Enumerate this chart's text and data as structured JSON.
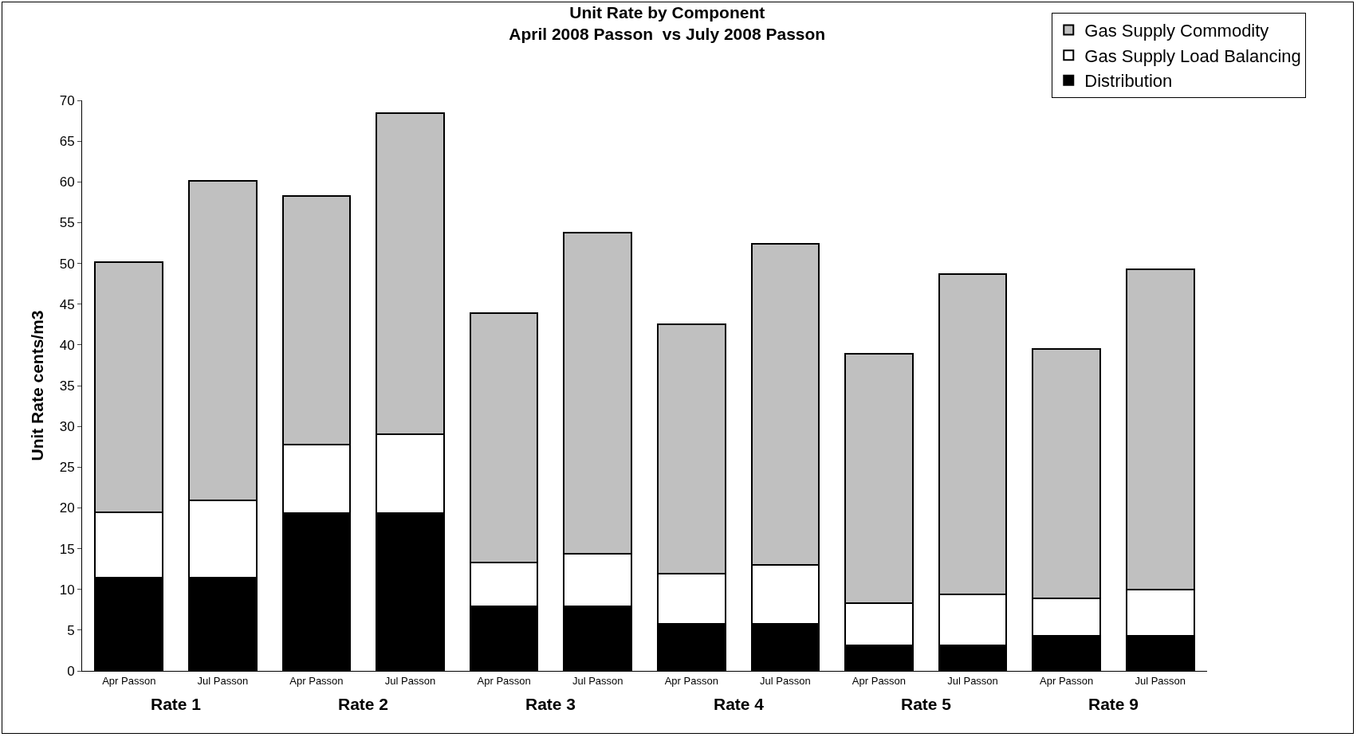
{
  "chart_data": {
    "type": "bar",
    "title": "Unit Rate by Component\nApril 2008 Passon  vs July 2008 Passon",
    "ylabel": "Unit Rate cents/m3",
    "categories": [
      "Apr Passon",
      "Jul Passon",
      "Apr Passon",
      "Jul Passon",
      "Apr Passon",
      "Jul Passon",
      "Apr Passon",
      "Jul Passon",
      "Apr Passon",
      "Jul Passon",
      "Apr Passon",
      "Jul Passon"
    ],
    "stacked": true,
    "series": [
      {
        "name": "Distribution",
        "color": "#000000",
        "values": [
          11.4,
          11.4,
          19.4,
          19.4,
          7.9,
          7.9,
          5.8,
          5.8,
          3.1,
          3.1,
          4.3,
          4.3
        ]
      },
      {
        "name": "Gas Supply Load Balancing",
        "color": "#ffffff",
        "values": [
          8.1,
          9.5,
          8.4,
          9.6,
          5.4,
          6.5,
          6.1,
          7.2,
          5.2,
          6.3,
          4.6,
          5.7
        ]
      },
      {
        "name": "Gas Supply Commodity",
        "color": "#c0c0c0",
        "values": [
          30.7,
          39.2,
          30.5,
          39.4,
          30.6,
          39.4,
          30.6,
          39.4,
          30.6,
          39.3,
          30.6,
          39.3
        ]
      }
    ],
    "annotations": [
      "Rate 1",
      "Rate 2",
      "Rate 3",
      "Rate 4",
      "Rate 5",
      "Rate 9"
    ],
    "ylim": [
      0,
      70
    ],
    "yticks": [
      0,
      5,
      10,
      15,
      20,
      25,
      30,
      35,
      40,
      45,
      50,
      55,
      60,
      65,
      70
    ],
    "grid": false,
    "legend": "top right"
  }
}
